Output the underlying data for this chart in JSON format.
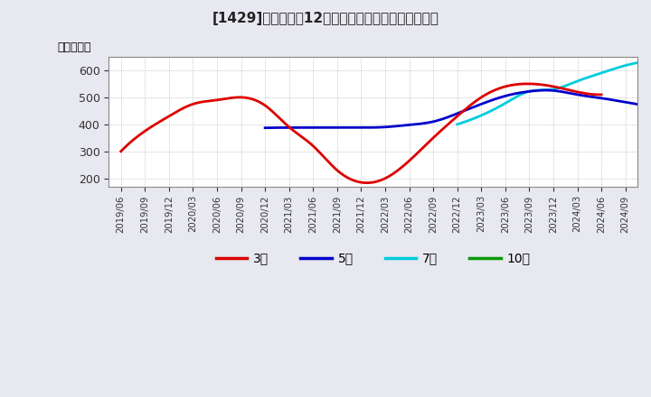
{
  "title": "[1429]　経常利益12か月移動合計の標準偏差の推移",
  "ylabel": "（百万円）",
  "ylim": [
    170,
    650
  ],
  "yticks": [
    200,
    300,
    400,
    500,
    600
  ],
  "background_color": "#e8e8f0",
  "plot_bg_color": "#ffffff",
  "grid_color": "#aaaaaa",
  "series_3": {
    "color": "#dd0000",
    "points": [
      [
        0,
        300
      ],
      [
        3,
        375
      ],
      [
        6,
        430
      ],
      [
        9,
        475
      ],
      [
        12,
        490
      ],
      [
        15,
        500
      ],
      [
        18,
        470
      ],
      [
        21,
        390
      ],
      [
        24,
        320
      ],
      [
        27,
        230
      ],
      [
        30,
        185
      ],
      [
        33,
        200
      ],
      [
        36,
        265
      ],
      [
        39,
        350
      ],
      [
        42,
        430
      ],
      [
        45,
        500
      ],
      [
        48,
        540
      ],
      [
        51,
        550
      ],
      [
        54,
        540
      ],
      [
        57,
        520
      ],
      [
        60,
        510
      ]
    ]
  },
  "series_5": {
    "color": "#0000cc",
    "points": [
      [
        18,
        387
      ],
      [
        21,
        388
      ],
      [
        24,
        388
      ],
      [
        27,
        388
      ],
      [
        30,
        388
      ],
      [
        33,
        390
      ],
      [
        36,
        398
      ],
      [
        39,
        410
      ],
      [
        42,
        440
      ],
      [
        45,
        475
      ],
      [
        48,
        505
      ],
      [
        51,
        522
      ],
      [
        54,
        525
      ],
      [
        57,
        510
      ],
      [
        60,
        497
      ],
      [
        63,
        482
      ],
      [
        66,
        468
      ]
    ]
  },
  "series_7": {
    "color": "#00ccdd",
    "points": [
      [
        42,
        400
      ],
      [
        45,
        433
      ],
      [
        48,
        478
      ],
      [
        51,
        522
      ],
      [
        54,
        530
      ],
      [
        57,
        560
      ],
      [
        60,
        590
      ],
      [
        63,
        618
      ],
      [
        66,
        632
      ]
    ]
  },
  "series_10": {
    "color": "#009900",
    "points": []
  },
  "legend_labels": [
    "3年",
    "5年",
    "7年",
    "10年"
  ],
  "legend_colors": [
    "#dd0000",
    "#0000cc",
    "#00ccdd",
    "#009900"
  ],
  "x_labels": [
    "2019/06",
    "2019/09",
    "2019/12",
    "2020/03",
    "2020/06",
    "2020/09",
    "2020/12",
    "2021/03",
    "2021/06",
    "2021/09",
    "2021/12",
    "2022/03",
    "2022/06",
    "2022/09",
    "2022/12",
    "2023/03",
    "2023/06",
    "2023/09",
    "2023/12",
    "2024/03",
    "2024/06",
    "2024/09"
  ],
  "xlim": [
    -1.5,
    64.5
  ],
  "linewidth": 2.0
}
